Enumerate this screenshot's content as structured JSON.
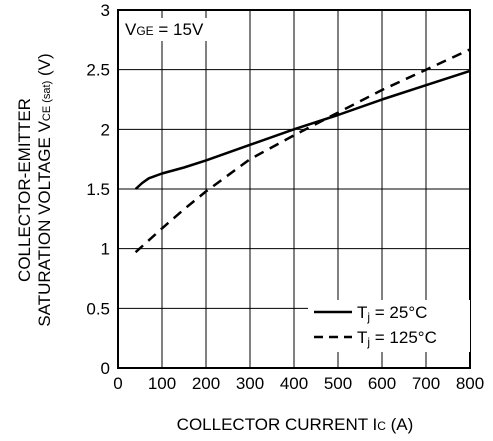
{
  "chart_data": {
    "type": "line",
    "title": "",
    "annotation": {
      "main": "V",
      "sub": "GE",
      "rest": " = 15V"
    },
    "xlabel": {
      "main": "COLLECTOR CURRENT  I",
      "sub": "C",
      "rest": " (A)"
    },
    "ylabel": {
      "line1": "COLLECTOR-EMITTER",
      "line2": {
        "main": "SATURATION VOLTAGE  V",
        "sub": "CE (sat)",
        "rest": " (V)"
      }
    },
    "xlim": [
      0,
      800
    ],
    "ylim": [
      0,
      3
    ],
    "xticks": [
      "0",
      "100",
      "200",
      "300",
      "400",
      "500",
      "600",
      "700",
      "800"
    ],
    "yticks": [
      "0",
      "0.5",
      "1",
      "1.5",
      "2",
      "2.5",
      "3"
    ],
    "grid": true,
    "legend_position": "bottom-right",
    "series": [
      {
        "name": {
          "main": "T",
          "sub": "j",
          "rest": " = 25°C"
        },
        "style": "solid",
        "x": [
          40,
          55,
          70,
          100,
          150,
          200,
          300,
          400,
          500,
          600,
          700,
          800
        ],
        "y": [
          1.5,
          1.55,
          1.59,
          1.63,
          1.68,
          1.74,
          1.87,
          2.0,
          2.12,
          2.25,
          2.37,
          2.49
        ]
      },
      {
        "name": {
          "main": "T",
          "sub": "j",
          "rest": " = 125°C"
        },
        "style": "dashed",
        "x": [
          40,
          100,
          150,
          200,
          300,
          400,
          500,
          600,
          700,
          800
        ],
        "y": [
          0.97,
          1.17,
          1.33,
          1.48,
          1.75,
          1.95,
          2.14,
          2.33,
          2.5,
          2.67
        ]
      }
    ]
  }
}
